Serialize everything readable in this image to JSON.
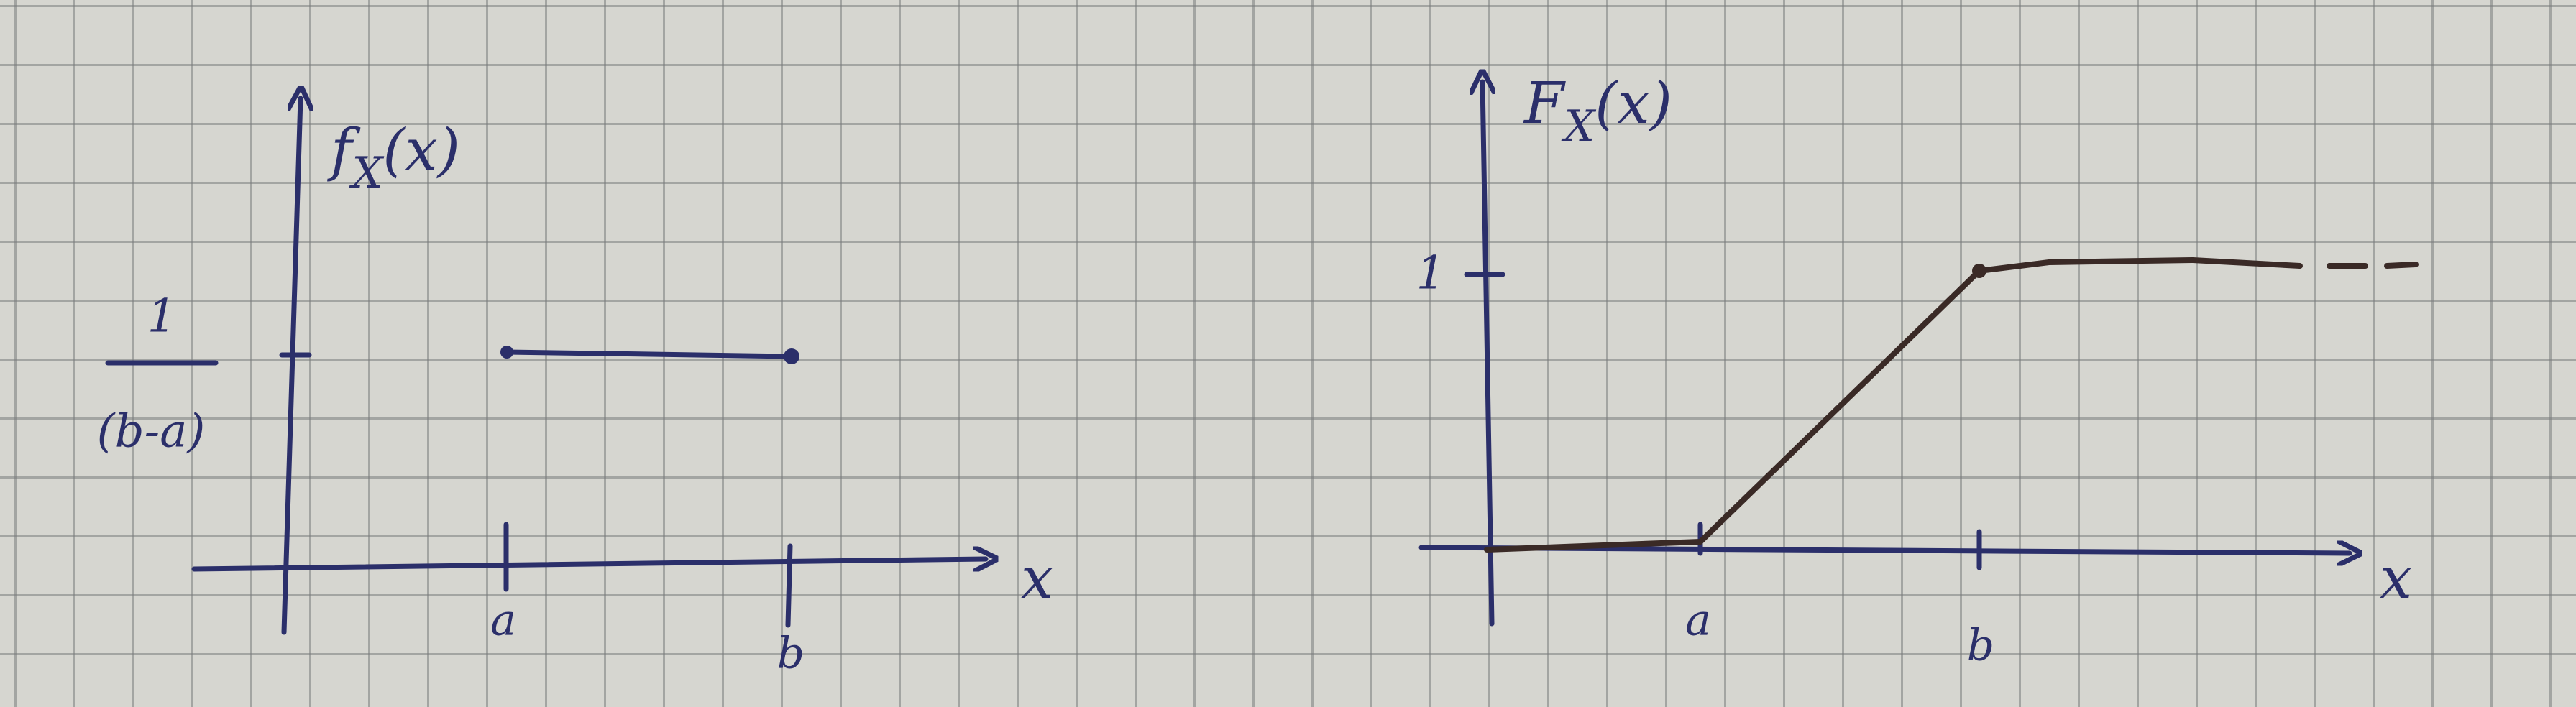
{
  "left_plot": {
    "y_label": {
      "main": "f",
      "sub": "X",
      "arg": "(x)"
    },
    "level_label": {
      "numerator": "1",
      "denominator": "(b-a)"
    },
    "x_ticks": [
      "a",
      "b"
    ],
    "x_label": "x"
  },
  "right_plot": {
    "y_label": {
      "main": "F",
      "sub": "X",
      "arg": "(x)"
    },
    "level_label": "1",
    "x_ticks": [
      "a",
      "b"
    ],
    "x_label": "x"
  }
}
